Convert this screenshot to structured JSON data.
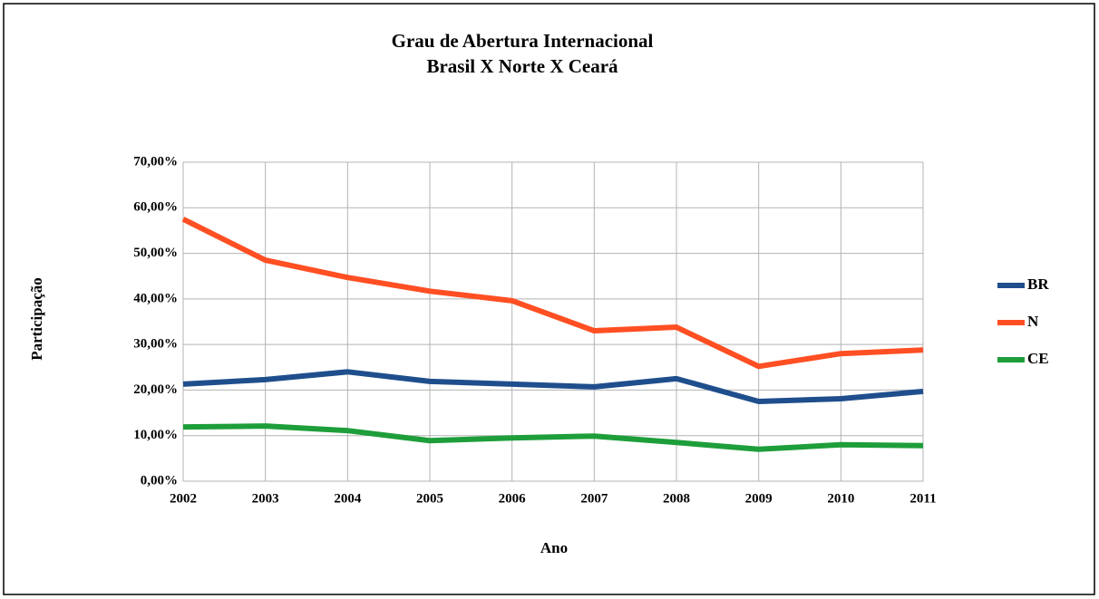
{
  "chart_data": {
    "type": "line",
    "title": "Grau de Abertura Internacional",
    "subtitle": "Brasil X Norte X Ceará",
    "xlabel": "Ano",
    "ylabel": "Participação",
    "x": [
      2002,
      2003,
      2004,
      2005,
      2006,
      2007,
      2008,
      2009,
      2010,
      2011
    ],
    "xlim": [
      2002,
      2011
    ],
    "xticks": [
      2002,
      2003,
      2004,
      2005,
      2006,
      2007,
      2008,
      2009,
      2010,
      2011
    ],
    "ylim": [
      0,
      70
    ],
    "yticks": [
      {
        "value": 0,
        "label": "0,00%"
      },
      {
        "value": 10,
        "label": "10,00%"
      },
      {
        "value": 20,
        "label": "20,00%"
      },
      {
        "value": 30,
        "label": "30,00%"
      },
      {
        "value": 40,
        "label": "40,00%"
      },
      {
        "value": 50,
        "label": "50,00%"
      },
      {
        "value": 60,
        "label": "60,00%"
      },
      {
        "value": 70,
        "label": "70,00%"
      }
    ],
    "grid": true,
    "legend": "right",
    "series": [
      {
        "name": "BR",
        "color": "#1f4e8c",
        "values": [
          21.3,
          22.3,
          24,
          21.9,
          21.3,
          20.7,
          22.5,
          17.5,
          18.1,
          19.7
        ]
      },
      {
        "name": "N",
        "color": "#ff4f23",
        "values": [
          57.5,
          48.5,
          44.7,
          41.7,
          39.6,
          33,
          33.8,
          25.2,
          28,
          28.8
        ]
      },
      {
        "name": "CE",
        "color": "#1e9e3a",
        "values": [
          11.9,
          12.1,
          11.1,
          8.9,
          9.5,
          9.9,
          8.5,
          7,
          8,
          7.8
        ]
      }
    ]
  }
}
